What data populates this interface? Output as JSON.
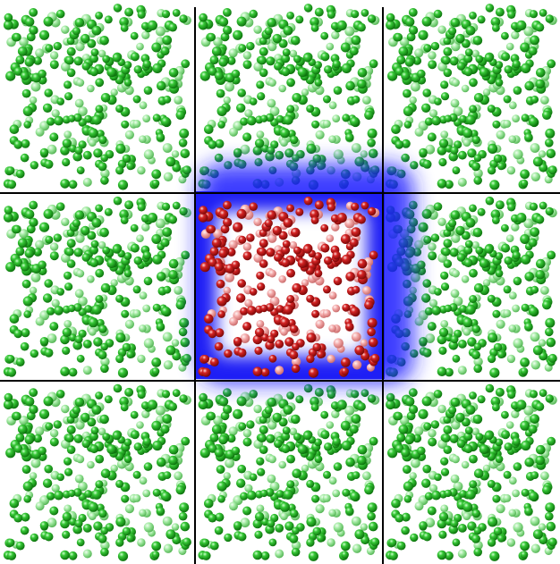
{
  "figure": {
    "grid": {
      "rows": 3,
      "cols": 3,
      "center_cell": [
        1,
        1
      ]
    },
    "colors": {
      "background": "#ffffff",
      "grid_line": "#000000",
      "image_atom": "#1fa81f",
      "image_atom_highlight": "#9df09d",
      "central_atom": "#c41616",
      "central_atom_highlight": "#ffb3b3",
      "cutoff_shell": "#1a1aff",
      "cell_interior": "#ffffff"
    },
    "atoms_per_cell": 300,
    "layout_seed": 1337
  }
}
